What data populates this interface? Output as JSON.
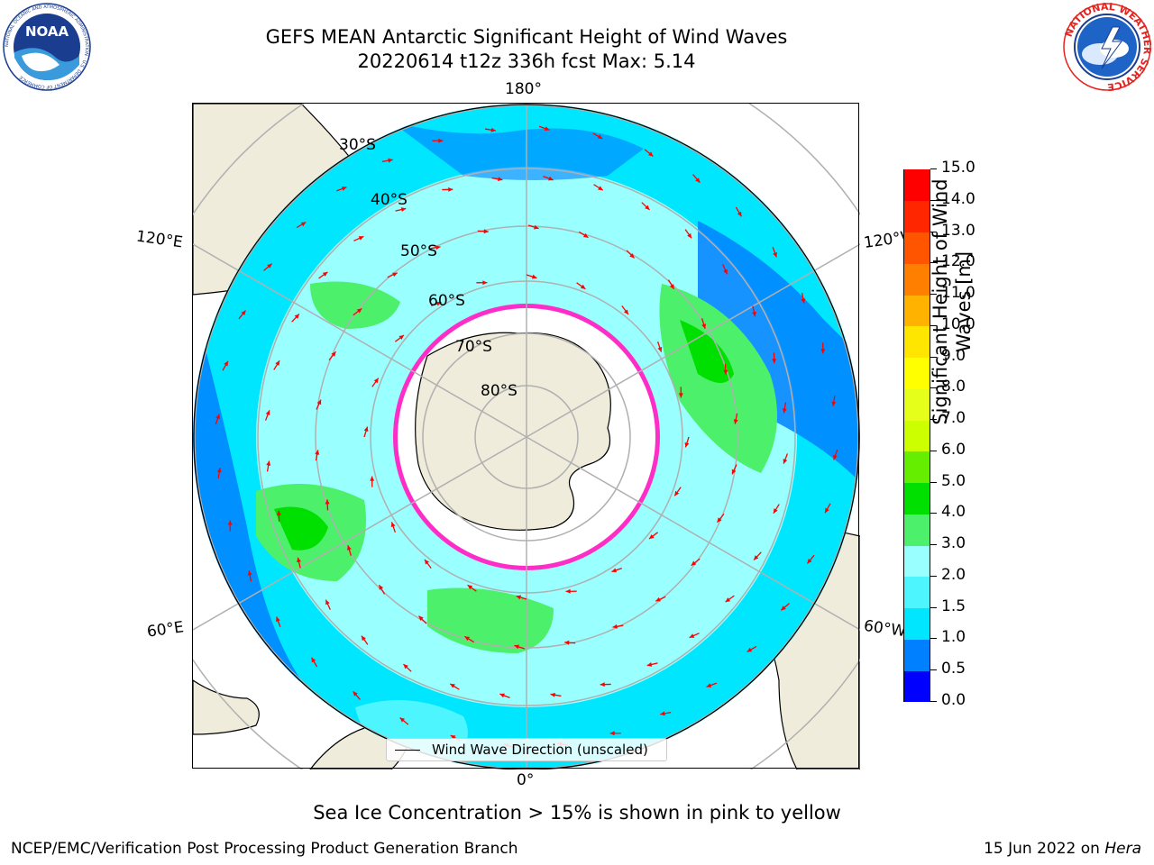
{
  "header": {
    "title_line1": "GEFS MEAN Antarctic Significant Height of Wind Waves",
    "title_line2": "20220614 t12z 336h fcst   Max: 5.14"
  },
  "logos": {
    "left": "noaa-logo",
    "right": "national-weather-service-logo",
    "left_text": "NOAA",
    "left_ring_text": "NATIONAL OCEANIC AND ATMOSPHERIC ADMINISTRATION · U.S. DEPARTMENT OF COMMERCE",
    "right_ring_text": "NATIONAL WEATHER SERVICE"
  },
  "map": {
    "projection": "south-polar-stereographic",
    "longitude_labels": [
      "180°",
      "120°E",
      "120°W",
      "60°E",
      "60°W",
      "0°"
    ],
    "latitude_labels": [
      "30°S",
      "40°S",
      "50°S",
      "60°S",
      "70°S",
      "80°S"
    ],
    "legend_label": "Wind Wave Direction (unscaled)",
    "colors": {
      "ocean_light": "#99ffff",
      "ocean_cyan": "#00e6ff",
      "ocean_mid": "#4df5ff",
      "ocean_blue": "#0080ff",
      "wave_green": "#4cf06a",
      "wave_green_dark": "#00e000",
      "land": "#efecdc",
      "sea_ice": "#ffffff",
      "ice_edge": "#ff2dc8",
      "arrow": "#ff0000",
      "grid": "#b0b0b0"
    }
  },
  "colorbar": {
    "label_line1": "Significant Height of Wind",
    "label_line2": "Waves [m]",
    "ticks": [
      "0.0",
      "0.5",
      "1.0",
      "1.5",
      "2.0",
      "3.0",
      "4.0",
      "5.0",
      "6.0",
      "7.0",
      "8.0",
      "9.0",
      "10.0",
      "11.0",
      "12.0",
      "13.0",
      "14.0",
      "15.0"
    ],
    "colors": [
      "#0000ff",
      "#0080ff",
      "#00e6ff",
      "#4df5ff",
      "#99ffff",
      "#4cf06a",
      "#00e000",
      "#66ee00",
      "#ccff00",
      "#e6ff1a",
      "#ffff00",
      "#ffe600",
      "#ffb300",
      "#ff8000",
      "#ff5500",
      "#ff2600",
      "#ff0000"
    ]
  },
  "note": "Sea Ice Concentration > 15% is shown in pink to yellow",
  "footer": {
    "left": "NCEP/EMC/Verification Post Processing Product Generation Branch",
    "right_prefix": "15 Jun 2022 on ",
    "right_host": "Hera"
  }
}
